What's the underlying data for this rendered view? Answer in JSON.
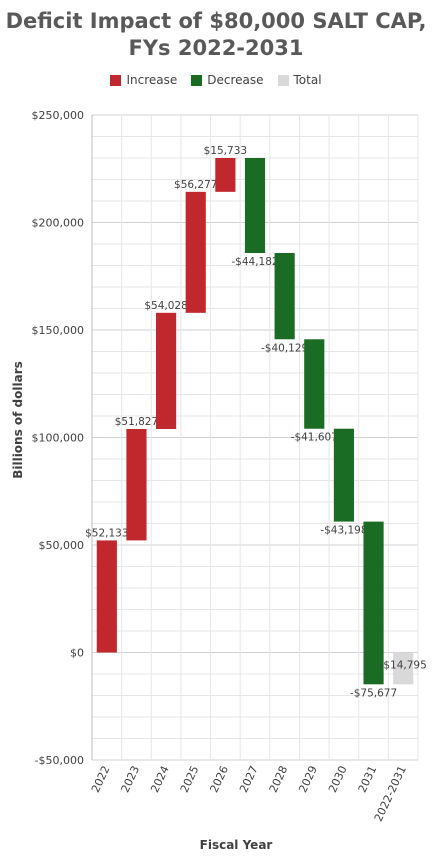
{
  "title_line1": "Deficit Impact of $80,000 SALT CAP,",
  "title_line2": "FYs 2022-2031",
  "legend": [
    {
      "label": "Increase",
      "color": "#c0282d"
    },
    {
      "label": "Decrease",
      "color": "#1a6b24"
    },
    {
      "label": "Total",
      "color": "#d9d9d9"
    }
  ],
  "chart_data": {
    "type": "waterfall",
    "title": "Deficit Impact of $80,000 SALT CAP, FYs 2022-2031",
    "xlabel": "Fiscal Year",
    "ylabel": "Billions of dollars",
    "ylim": [
      -50000,
      250000
    ],
    "yticks": [
      -50000,
      0,
      50000,
      100000,
      150000,
      200000,
      250000
    ],
    "ytick_labels": [
      "-$50,000",
      "$0",
      "$50,000",
      "$100,000",
      "$150,000",
      "$200,000",
      "$250,000"
    ],
    "grid": true,
    "legend_position": "top",
    "categories": [
      "2022",
      "2023",
      "2024",
      "2025",
      "2026",
      "2027",
      "2028",
      "2029",
      "2030",
      "2031",
      "2022-2031"
    ],
    "values": [
      52133,
      51827,
      54028,
      56277,
      15733,
      -44182,
      -40129,
      -41607,
      -43198,
      -75677,
      -14795
    ],
    "labels": [
      "$52,133",
      "$51,827",
      "$54,028",
      "$56,277",
      "$15,733",
      "-$44,182",
      "-$40,129",
      "-$41,607",
      "-$43,198",
      "-$75,677",
      "-$14,795"
    ],
    "kinds": [
      "increase",
      "increase",
      "increase",
      "increase",
      "increase",
      "decrease",
      "decrease",
      "decrease",
      "decrease",
      "decrease",
      "total"
    ]
  }
}
